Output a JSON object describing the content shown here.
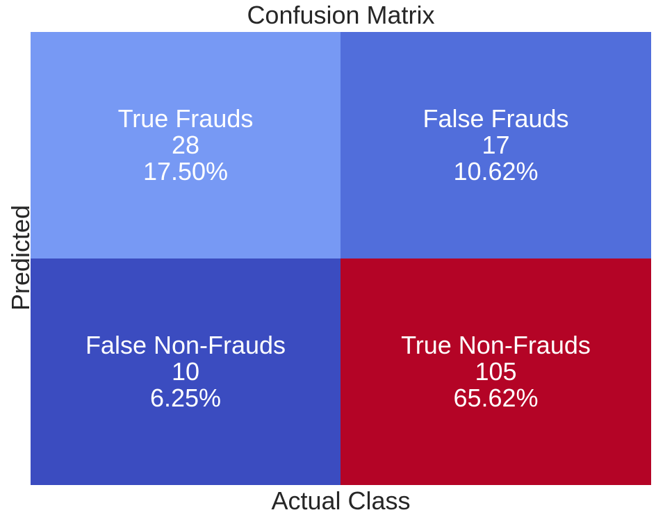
{
  "chart_data": {
    "type": "heatmap",
    "title": "Confusion Matrix",
    "xlabel": "Actual Class",
    "ylabel": "Predicted",
    "colormap": "coolwarm",
    "rows": 2,
    "cols": 2,
    "cells": [
      {
        "label": "True Frauds",
        "count": "28",
        "percent": "17.50%",
        "value": 28,
        "color": "#7799f4"
      },
      {
        "label": "False Frauds",
        "count": "17",
        "percent": "10.62%",
        "value": 17,
        "color": "#516edb"
      },
      {
        "label": "False Non-Frauds",
        "count": "10",
        "percent": "6.25%",
        "value": 10,
        "color": "#3b4cc0"
      },
      {
        "label": "True Non-Frauds",
        "count": "105",
        "percent": "65.62%",
        "value": 105,
        "color": "#b40426"
      }
    ]
  }
}
